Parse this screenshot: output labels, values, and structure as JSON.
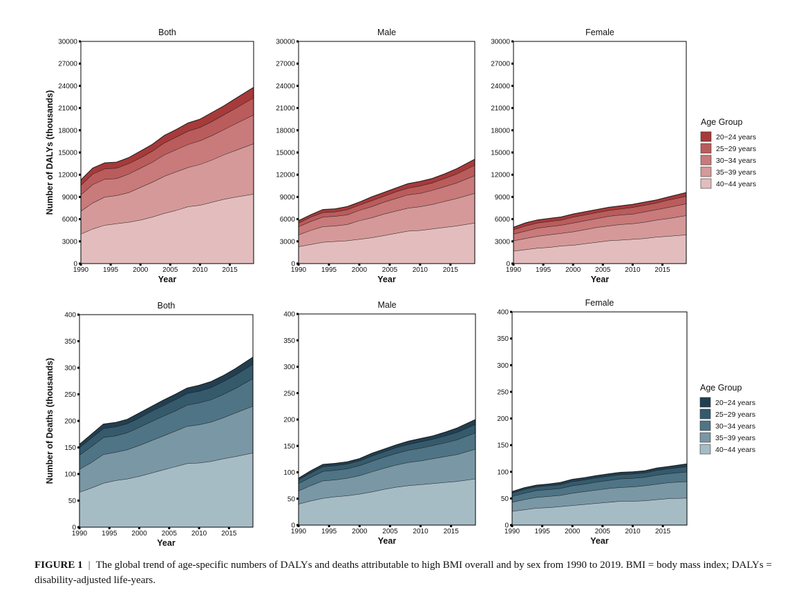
{
  "figure": {
    "caption_label": "FIGURE 1",
    "caption_separator": "|",
    "caption_text": "The global trend of age-specific numbers of DALYs and deaths attributable to high BMI overall and by sex from 1990 to 2019. BMI = body mass index; DALYs = disability-adjusted life-years."
  },
  "chart_data": [
    {
      "type": "area",
      "stacked": true,
      "title": "Both",
      "xlabel": "Year",
      "ylabel": "Number of DALYs (thousands)",
      "ylim": [
        0,
        30000
      ],
      "yticks": [
        0,
        3000,
        6000,
        9000,
        12000,
        15000,
        18000,
        21000,
        24000,
        27000,
        30000
      ],
      "xticks": [
        1990,
        1995,
        2000,
        2005,
        2010,
        2015
      ],
      "grid": false,
      "x": [
        1990,
        1992,
        1994,
        1996,
        1998,
        2000,
        2002,
        2004,
        2006,
        2008,
        2010,
        2012,
        2014,
        2016,
        2019
      ],
      "series": [
        {
          "name": "40−44 years",
          "values": [
            4000,
            4700,
            5200,
            5400,
            5600,
            5900,
            6300,
            6800,
            7200,
            7700,
            7900,
            8300,
            8700,
            9000,
            9400
          ]
        },
        {
          "name": "35−39 years",
          "values": [
            3100,
            3500,
            3800,
            3800,
            4000,
            4400,
            4700,
            5000,
            5200,
            5300,
            5500,
            5700,
            6000,
            6300,
            6800
          ]
        },
        {
          "name": "30−34 years",
          "values": [
            2200,
            2500,
            2400,
            2300,
            2500,
            2600,
            2700,
            2900,
            3000,
            3100,
            3200,
            3300,
            3400,
            3600,
            3900
          ]
        },
        {
          "name": "25−29 years",
          "values": [
            1300,
            1400,
            1400,
            1400,
            1400,
            1400,
            1500,
            1600,
            1700,
            1800,
            1800,
            1900,
            2000,
            2100,
            2300
          ]
        },
        {
          "name": "20−24 years",
          "values": [
            700,
            800,
            800,
            800,
            800,
            900,
            900,
            1000,
            1000,
            1100,
            1100,
            1200,
            1200,
            1300,
            1400
          ]
        }
      ]
    },
    {
      "type": "area",
      "stacked": true,
      "title": "Male",
      "xlabel": "Year",
      "ylabel": "",
      "ylim": [
        0,
        30000
      ],
      "yticks": [
        0,
        3000,
        6000,
        9000,
        12000,
        15000,
        18000,
        21000,
        24000,
        27000,
        30000
      ],
      "xticks": [
        1990,
        1995,
        2000,
        2005,
        2010,
        2015
      ],
      "grid": false,
      "x": [
        1990,
        1992,
        1994,
        1996,
        1998,
        2000,
        2002,
        2004,
        2006,
        2008,
        2010,
        2012,
        2014,
        2016,
        2019
      ],
      "series": [
        {
          "name": "40−44 years",
          "values": [
            2300,
            2600,
            2900,
            3000,
            3100,
            3300,
            3500,
            3800,
            4100,
            4400,
            4500,
            4700,
            4900,
            5100,
            5500
          ]
        },
        {
          "name": "35−39 years",
          "values": [
            1600,
            1900,
            2100,
            2100,
            2200,
            2500,
            2700,
            2900,
            3000,
            3100,
            3200,
            3300,
            3500,
            3700,
            4000
          ]
        },
        {
          "name": "30−34 years",
          "values": [
            1100,
            1200,
            1300,
            1300,
            1300,
            1400,
            1500,
            1600,
            1700,
            1800,
            1800,
            1900,
            2000,
            2100,
            2400
          ]
        },
        {
          "name": "25−29 years",
          "values": [
            500,
            600,
            600,
            600,
            700,
            700,
            800,
            800,
            900,
            900,
            1000,
            1000,
            1100,
            1200,
            1400
          ]
        },
        {
          "name": "20−24 years",
          "values": [
            300,
            300,
            400,
            400,
            400,
            400,
            500,
            500,
            500,
            600,
            600,
            600,
            600,
            700,
            800
          ]
        }
      ]
    },
    {
      "type": "area",
      "stacked": true,
      "title": "Female",
      "xlabel": "Year",
      "ylabel": "",
      "ylim": [
        0,
        30000
      ],
      "yticks": [
        0,
        3000,
        6000,
        9000,
        12000,
        15000,
        18000,
        21000,
        24000,
        27000,
        30000
      ],
      "xticks": [
        1990,
        1995,
        2000,
        2005,
        2010,
        2015
      ],
      "grid": false,
      "x": [
        1990,
        1992,
        1994,
        1996,
        1998,
        2000,
        2002,
        2004,
        2006,
        2008,
        2010,
        2012,
        2014,
        2016,
        2019
      ],
      "series": [
        {
          "name": "40−44 years",
          "values": [
            1700,
            1900,
            2100,
            2200,
            2400,
            2500,
            2700,
            2900,
            3100,
            3200,
            3300,
            3400,
            3600,
            3700,
            3900
          ]
        },
        {
          "name": "35−39 years",
          "values": [
            1400,
            1500,
            1600,
            1700,
            1700,
            1800,
            1900,
            2000,
            2000,
            2100,
            2100,
            2200,
            2300,
            2400,
            2600
          ]
        },
        {
          "name": "30−34 years",
          "values": [
            900,
            1000,
            1100,
            1100,
            1100,
            1200,
            1200,
            1200,
            1300,
            1300,
            1300,
            1400,
            1400,
            1500,
            1600
          ]
        },
        {
          "name": "25−29 years",
          "values": [
            600,
            700,
            700,
            700,
            700,
            800,
            800,
            800,
            800,
            800,
            900,
            900,
            900,
            1000,
            1000
          ]
        },
        {
          "name": "20−24 years",
          "values": [
            300,
            400,
            400,
            400,
            400,
            400,
            400,
            400,
            400,
            400,
            400,
            400,
            400,
            400,
            500
          ]
        }
      ]
    },
    {
      "type": "area",
      "stacked": true,
      "title": "Both",
      "xlabel": "Year",
      "ylabel": "Number of Deaths (thousands)",
      "ylim": [
        0,
        400
      ],
      "yticks": [
        0,
        50,
        100,
        150,
        200,
        250,
        300,
        350,
        400
      ],
      "xticks": [
        1990,
        1995,
        2000,
        2005,
        2010,
        2015
      ],
      "grid": false,
      "x": [
        1990,
        1992,
        1994,
        1996,
        1998,
        2000,
        2002,
        2004,
        2006,
        2008,
        2010,
        2012,
        2014,
        2016,
        2019
      ],
      "series": [
        {
          "name": "40−44 years",
          "values": [
            66,
            74,
            83,
            88,
            91,
            96,
            102,
            108,
            114,
            120,
            121,
            124,
            129,
            133,
            140
          ]
        },
        {
          "name": "35−39 years",
          "values": [
            43,
            48,
            54,
            53,
            55,
            58,
            61,
            64,
            67,
            70,
            72,
            74,
            77,
            82,
            88
          ]
        },
        {
          "name": "30−34 years",
          "values": [
            27,
            30,
            32,
            31,
            32,
            34,
            36,
            37,
            38,
            40,
            41,
            42,
            44,
            46,
            52
          ]
        },
        {
          "name": "25−29 years",
          "values": [
            14,
            16,
            17,
            17,
            17,
            18,
            19,
            20,
            21,
            22,
            22,
            23,
            24,
            25,
            27
          ]
        },
        {
          "name": "20−24 years",
          "values": [
            6,
            7,
            8,
            8,
            8,
            9,
            9,
            10,
            10,
            10,
            11,
            11,
            11,
            12,
            13
          ]
        }
      ]
    },
    {
      "type": "area",
      "stacked": true,
      "title": "Male",
      "xlabel": "Year",
      "ylabel": "",
      "ylim": [
        0,
        400
      ],
      "yticks": [
        0,
        50,
        100,
        150,
        200,
        250,
        300,
        350,
        400
      ],
      "xticks": [
        1990,
        1995,
        2000,
        2005,
        2010,
        2015
      ],
      "grid": false,
      "x": [
        1990,
        1992,
        1994,
        1996,
        1998,
        2000,
        2002,
        2004,
        2006,
        2008,
        2010,
        2012,
        2014,
        2016,
        2019
      ],
      "series": [
        {
          "name": "40−44 years",
          "values": [
            40,
            46,
            51,
            54,
            56,
            59,
            63,
            68,
            72,
            75,
            77,
            79,
            81,
            83,
            88
          ]
        },
        {
          "name": "35−39 years",
          "values": [
            25,
            29,
            33,
            32,
            33,
            35,
            38,
            40,
            42,
            44,
            45,
            47,
            49,
            51,
            56
          ]
        },
        {
          "name": "30−34 years",
          "values": [
            14,
            16,
            18,
            18,
            18,
            19,
            20,
            21,
            22,
            23,
            24,
            25,
            26,
            28,
            31
          ]
        },
        {
          "name": "25−29 years",
          "values": [
            7,
            8,
            9,
            9,
            9,
            9,
            10,
            10,
            11,
            11,
            12,
            12,
            13,
            14,
            16
          ]
        },
        {
          "name": "20−24 years",
          "values": [
            3,
            4,
            4,
            4,
            4,
            4,
            5,
            5,
            5,
            6,
            6,
            6,
            7,
            8,
            9
          ]
        }
      ]
    },
    {
      "type": "area",
      "stacked": true,
      "title": "Female",
      "xlabel": "Year",
      "ylabel": "",
      "ylim": [
        0,
        400
      ],
      "yticks": [
        0,
        50,
        100,
        150,
        200,
        250,
        300,
        350,
        400
      ],
      "xticks": [
        1990,
        1995,
        2000,
        2005,
        2010,
        2015
      ],
      "grid": false,
      "x": [
        1990,
        1992,
        1994,
        1996,
        1998,
        2000,
        2002,
        2004,
        2006,
        2008,
        2010,
        2012,
        2014,
        2016,
        2019
      ],
      "series": [
        {
          "name": "40−44 years",
          "values": [
            26,
            29,
            32,
            33,
            35,
            37,
            39,
            41,
            43,
            45,
            45,
            46,
            48,
            50,
            51
          ]
        },
        {
          "name": "35−39 years",
          "values": [
            17,
            19,
            20,
            21,
            21,
            23,
            24,
            25,
            26,
            26,
            27,
            28,
            29,
            30,
            31
          ]
        },
        {
          "name": "30−34 years",
          "values": [
            11,
            12,
            13,
            13,
            13,
            14,
            14,
            15,
            15,
            16,
            16,
            16,
            17,
            17,
            18
          ]
        },
        {
          "name": "25−29 years",
          "values": [
            6,
            7,
            7,
            7,
            7,
            8,
            8,
            8,
            8,
            8,
            8,
            8,
            9,
            9,
            10
          ]
        },
        {
          "name": "20−24 years",
          "values": [
            3,
            3,
            3,
            3,
            4,
            4,
            4,
            4,
            4,
            4,
            4,
            4,
            4,
            4,
            5
          ]
        }
      ]
    }
  ],
  "legends": [
    {
      "title": "Age Group",
      "entries": [
        "20−24 years",
        "25−29 years",
        "30−34 years",
        "35−39 years",
        "40−44 years"
      ],
      "colors": [
        "#a73a3a",
        "#ba5c5c",
        "#c97a7a",
        "#d59999",
        "#e3bdbd"
      ]
    },
    {
      "title": "Age Group",
      "entries": [
        "20−24 years",
        "25−29 years",
        "30−34 years",
        "35−39 years",
        "40−44 years"
      ],
      "colors": [
        "#223f52",
        "#355a6c",
        "#4f7485",
        "#7a97a5",
        "#a6bcc5"
      ]
    }
  ]
}
